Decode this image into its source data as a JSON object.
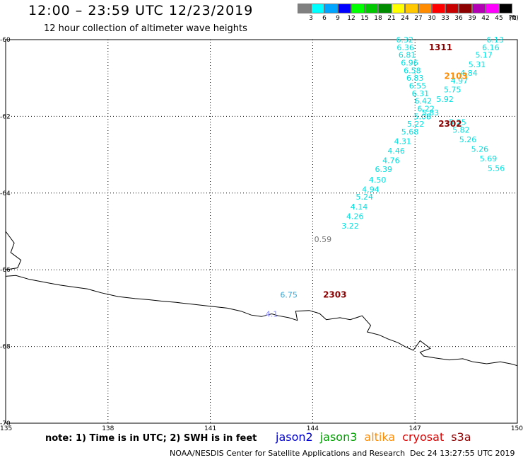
{
  "header": {
    "title": "12:00 – 23:59 UTC 12/23/2019",
    "subtitle": "12 hour collection of altimeter wave heights"
  },
  "legend": {
    "unit": "(ft)",
    "bins": [
      {
        "label": "3",
        "color": "#808080"
      },
      {
        "label": "6",
        "color": "#00ffff"
      },
      {
        "label": "9",
        "color": "#00a5ff"
      },
      {
        "label": "12",
        "color": "#0000ff"
      },
      {
        "label": "15",
        "color": "#00ff00"
      },
      {
        "label": "18",
        "color": "#00c800"
      },
      {
        "label": "21",
        "color": "#008c00"
      },
      {
        "label": "24",
        "color": "#ffff00"
      },
      {
        "label": "27",
        "color": "#ffc800"
      },
      {
        "label": "30",
        "color": "#ff8c00"
      },
      {
        "label": "33",
        "color": "#ff0000"
      },
      {
        "label": "36",
        "color": "#c80000"
      },
      {
        "label": "39",
        "color": "#8c0000"
      },
      {
        "label": "42",
        "color": "#b400b4"
      },
      {
        "label": "45",
        "color": "#ff00ff"
      },
      {
        "label": "70",
        "color": "#000000"
      }
    ]
  },
  "map": {
    "lon_range": [
      135,
      150
    ],
    "lat_range": [
      -70,
      -60
    ],
    "lat_labels": [
      "-60",
      "-62",
      "-64",
      "-66",
      "-68",
      "-70"
    ],
    "lon_labels": [
      "135",
      "138",
      "141",
      "144",
      "147",
      "150"
    ],
    "observations": [
      {
        "text": "6.32",
        "lon": 146.7,
        "lat": -60.0,
        "color": "#00e0e0"
      },
      {
        "text": "6.36",
        "lon": 146.72,
        "lat": -60.2,
        "color": "#00e0e0"
      },
      {
        "text": "6.81",
        "lon": 146.77,
        "lat": -60.4,
        "color": "#00e0e0"
      },
      {
        "text": "6.96",
        "lon": 146.84,
        "lat": -60.6,
        "color": "#00e0e0"
      },
      {
        "text": "6.58",
        "lon": 146.92,
        "lat": -60.8,
        "color": "#00e0e0"
      },
      {
        "text": "6.83",
        "lon": 147.0,
        "lat": -61.0,
        "color": "#00e0e0"
      },
      {
        "text": "6.55",
        "lon": 147.08,
        "lat": -61.2,
        "color": "#00e0e0"
      },
      {
        "text": "6.31",
        "lon": 147.16,
        "lat": -61.4,
        "color": "#00e0e0"
      },
      {
        "text": "6.42",
        "lon": 147.24,
        "lat": -61.6,
        "color": "#00e0e0"
      },
      {
        "text": "6.22",
        "lon": 147.32,
        "lat": -61.8,
        "color": "#00e0e0"
      },
      {
        "text": "5.83",
        "lon": 147.45,
        "lat": -61.9,
        "color": "#00e0e0"
      },
      {
        "text": "5.08",
        "lon": 147.22,
        "lat": -62.0,
        "color": "#00e0e0"
      },
      {
        "text": "5.22",
        "lon": 147.02,
        "lat": -62.2,
        "color": "#00e0e0"
      },
      {
        "text": "5.68",
        "lon": 146.85,
        "lat": -62.4,
        "color": "#00e0e0"
      },
      {
        "text": "4.31",
        "lon": 146.64,
        "lat": -62.65,
        "color": "#00e0e0"
      },
      {
        "text": "4.46",
        "lon": 146.45,
        "lat": -62.9,
        "color": "#00e0e0"
      },
      {
        "text": "4.76",
        "lon": 146.3,
        "lat": -63.15,
        "color": "#00e0e0"
      },
      {
        "text": "6.39",
        "lon": 146.08,
        "lat": -63.38,
        "color": "#00e0e0"
      },
      {
        "text": "4.50",
        "lon": 145.9,
        "lat": -63.65,
        "color": "#00e0e0"
      },
      {
        "text": "4.94",
        "lon": 145.7,
        "lat": -63.9,
        "color": "#00e0e0"
      },
      {
        "text": "5.24",
        "lon": 145.52,
        "lat": -64.1,
        "color": "#00e0e0"
      },
      {
        "text": "4.14",
        "lon": 145.36,
        "lat": -64.35,
        "color": "#00e0e0"
      },
      {
        "text": "4.26",
        "lon": 145.24,
        "lat": -64.6,
        "color": "#00e0e0"
      },
      {
        "text": "3.22",
        "lon": 145.1,
        "lat": -64.85,
        "color": "#00e0e0"
      },
      {
        "text": "6.13",
        "lon": 149.35,
        "lat": -60.0,
        "color": "#00e0e0"
      },
      {
        "text": "6.16",
        "lon": 149.22,
        "lat": -60.2,
        "color": "#00e0e0"
      },
      {
        "text": "5.17",
        "lon": 149.02,
        "lat": -60.4,
        "color": "#00e0e0"
      },
      {
        "text": "5.31",
        "lon": 148.82,
        "lat": -60.65,
        "color": "#00e0e0"
      },
      {
        "text": "4.84",
        "lon": 148.58,
        "lat": -60.87,
        "color": "#00e0e0"
      },
      {
        "text": "4.97",
        "lon": 148.3,
        "lat": -61.07,
        "color": "#00e0e0"
      },
      {
        "text": "5.75",
        "lon": 148.1,
        "lat": -61.3,
        "color": "#00e0e0"
      },
      {
        "text": "5.92",
        "lon": 147.88,
        "lat": -61.55,
        "color": "#00e0e0"
      },
      {
        "text": "5.25",
        "lon": 148.25,
        "lat": -62.15,
        "color": "#00e0e0"
      },
      {
        "text": "5.82",
        "lon": 148.35,
        "lat": -62.35,
        "color": "#00e0e0"
      },
      {
        "text": "5.26",
        "lon": 148.55,
        "lat": -62.6,
        "color": "#00e0e0"
      },
      {
        "text": "5.26",
        "lon": 148.9,
        "lat": -62.85,
        "color": "#00e0e0"
      },
      {
        "text": "5.69",
        "lon": 149.15,
        "lat": -63.1,
        "color": "#00e0e0"
      },
      {
        "text": "5.56",
        "lon": 149.38,
        "lat": -63.35,
        "color": "#00e0e0"
      },
      {
        "text": "0.59",
        "lon": 144.3,
        "lat": -65.2,
        "color": "#777777"
      },
      {
        "text": "6.75",
        "lon": 143.3,
        "lat": -66.65,
        "color": "#33aadd"
      },
      {
        "text": "4.1",
        "lon": 142.8,
        "lat": -67.15,
        "color": "#8888ff"
      }
    ],
    "time_labels": [
      {
        "text": "1311",
        "lon": 147.75,
        "lat": -60.2,
        "color": "#8b0000"
      },
      {
        "text": "2103",
        "lon": 148.2,
        "lat": -60.95,
        "color": "#ff8c00"
      },
      {
        "text": "2302",
        "lon": 148.03,
        "lat": -62.2,
        "color": "#8b0000"
      },
      {
        "text": "2303",
        "lon": 144.65,
        "lat": -66.65,
        "color": "#8b0000"
      }
    ],
    "coastline": [
      [
        135.0,
        -65.0
      ],
      [
        135.25,
        -65.3
      ],
      [
        135.15,
        -65.55
      ],
      [
        135.45,
        -65.75
      ],
      [
        135.35,
        -65.95
      ],
      [
        135.0,
        -66.0
      ],
      [
        135.0,
        -66.17
      ],
      [
        135.3,
        -66.15
      ],
      [
        135.7,
        -66.25
      ],
      [
        136.0,
        -66.3
      ],
      [
        136.3,
        -66.35
      ],
      [
        136.6,
        -66.4
      ],
      [
        137.0,
        -66.45
      ],
      [
        137.4,
        -66.5
      ],
      [
        137.8,
        -66.6
      ],
      [
        138.3,
        -66.7
      ],
      [
        138.8,
        -66.75
      ],
      [
        139.2,
        -66.78
      ],
      [
        139.6,
        -66.82
      ],
      [
        140.0,
        -66.85
      ],
      [
        140.5,
        -66.9
      ],
      [
        141.0,
        -66.95
      ],
      [
        141.5,
        -67.0
      ],
      [
        141.9,
        -67.08
      ],
      [
        142.2,
        -67.18
      ],
      [
        142.5,
        -67.22
      ],
      [
        142.8,
        -67.15
      ],
      [
        143.0,
        -67.2
      ],
      [
        143.3,
        -67.25
      ],
      [
        143.55,
        -67.32
      ],
      [
        143.5,
        -67.08
      ],
      [
        143.9,
        -67.06
      ],
      [
        144.2,
        -67.14
      ],
      [
        144.4,
        -67.3
      ],
      [
        144.8,
        -67.25
      ],
      [
        145.1,
        -67.3
      ],
      [
        145.45,
        -67.2
      ],
      [
        145.7,
        -67.45
      ],
      [
        145.6,
        -67.62
      ],
      [
        145.95,
        -67.7
      ],
      [
        146.2,
        -67.8
      ],
      [
        146.5,
        -67.9
      ],
      [
        146.7,
        -68.0
      ],
      [
        146.95,
        -68.1
      ],
      [
        147.15,
        -67.85
      ],
      [
        147.45,
        -68.05
      ],
      [
        147.15,
        -68.15
      ],
      [
        147.25,
        -68.25
      ],
      [
        147.6,
        -68.3
      ],
      [
        148.0,
        -68.35
      ],
      [
        148.4,
        -68.32
      ],
      [
        148.7,
        -68.4
      ],
      [
        149.1,
        -68.45
      ],
      [
        149.5,
        -68.4
      ],
      [
        149.8,
        -68.45
      ],
      [
        150.0,
        -68.5
      ]
    ]
  },
  "footer": {
    "note": "note:  1) Time is in UTC;  2) SWH is in feet",
    "satellites": [
      {
        "name": "jason2",
        "color": "#0000cc"
      },
      {
        "name": "jason3",
        "color": "#00a000"
      },
      {
        "name": "altika",
        "color": "#ff8c00"
      },
      {
        "name": "cryosat",
        "color": "#dd0000"
      },
      {
        "name": "s3a",
        "color": "#8b0000"
      }
    ],
    "credit": "NOAA/NESDIS Center for Satellite Applications and Research",
    "timestamp": "Dec 24 13:27:55 UTC 2019"
  }
}
